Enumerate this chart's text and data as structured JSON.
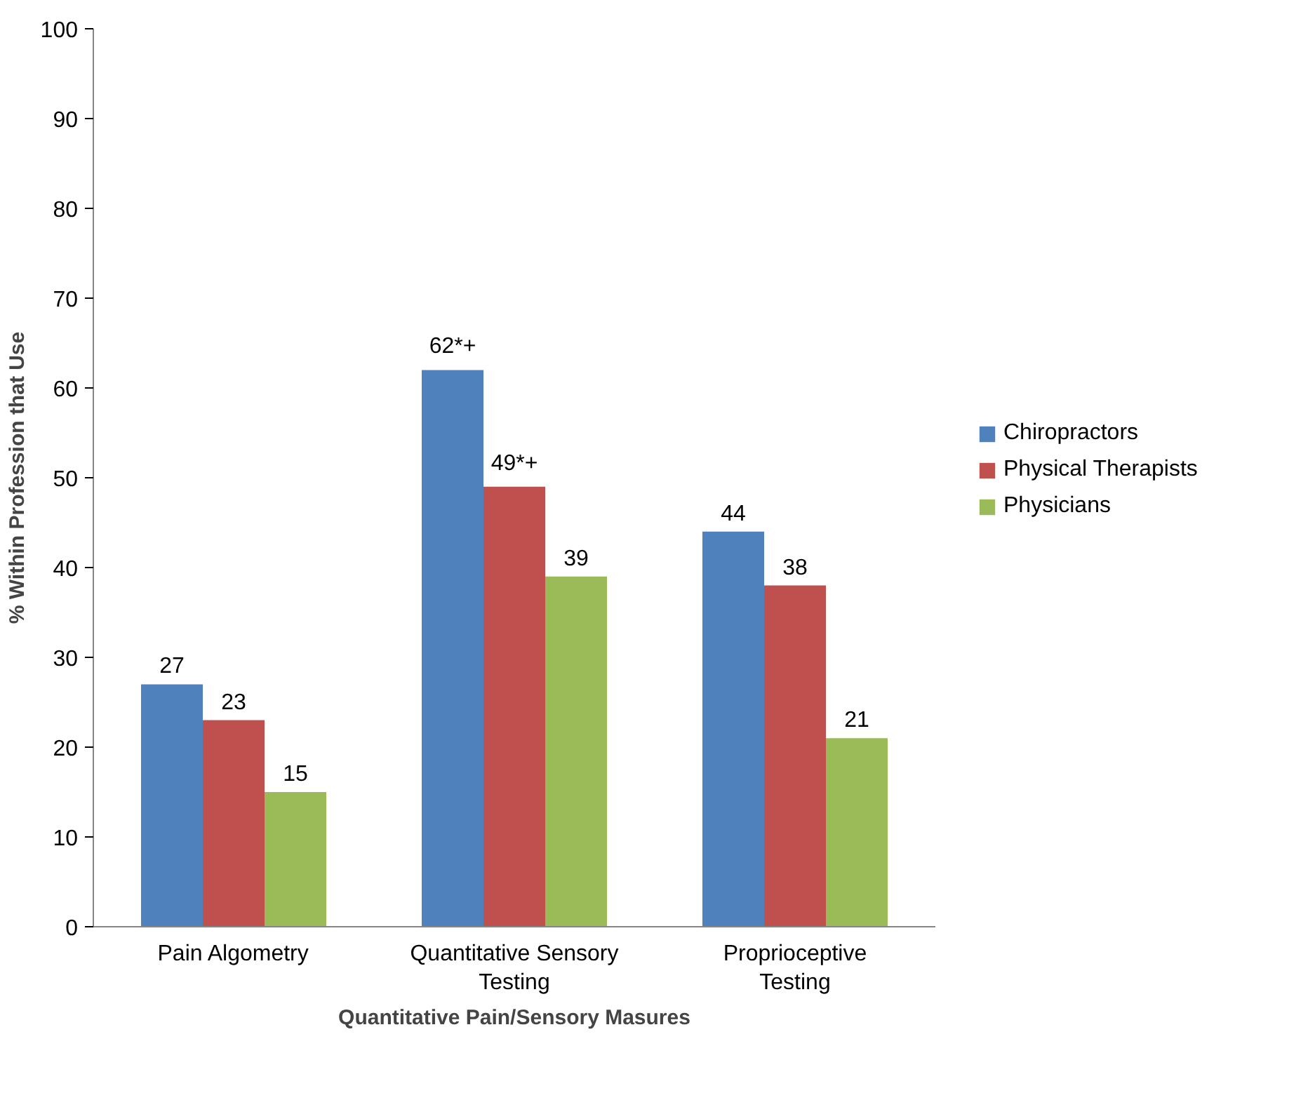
{
  "chart_data": {
    "type": "bar",
    "xlabel": "Quantitative Pain/Sensory Masures",
    "ylabel": "% Within Profession that Use",
    "categories": [
      "Pain Algometry",
      "Quantitative Sensory Testing",
      "Proprioceptive Testing"
    ],
    "series": [
      {
        "name": "Chiropractors",
        "color": "#4f81bd",
        "values": [
          27,
          62,
          44
        ],
        "value_labels": [
          "27",
          "62*+",
          "44"
        ]
      },
      {
        "name": "Physical Therapists",
        "color": "#c0504d",
        "values": [
          23,
          49,
          38
        ],
        "value_labels": [
          "23",
          "49*+",
          "38"
        ]
      },
      {
        "name": "Physicians",
        "color": "#9bbb59",
        "values": [
          15,
          39,
          21
        ],
        "value_labels": [
          "15",
          "39",
          "21"
        ]
      }
    ],
    "ylim": [
      0,
      100
    ],
    "yticks": [
      0,
      10,
      20,
      30,
      40,
      50,
      60,
      70,
      80,
      90,
      100
    ],
    "grid": false,
    "legend": "right"
  }
}
